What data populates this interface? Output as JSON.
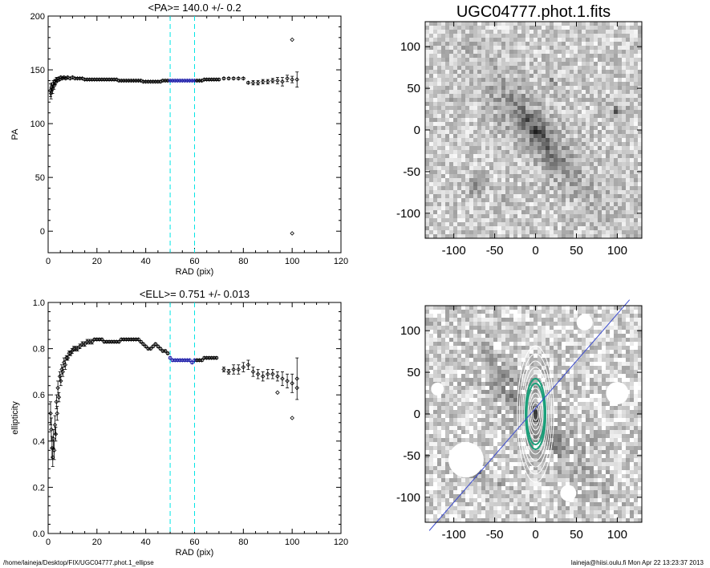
{
  "footer": {
    "path": "/home/laineja/Desktop/FIX/UGC04777.phot.1_ellipse",
    "stamp": "laineja@hiisi.oulu.fi  Mon Apr 22 13:23:37 2013"
  },
  "colors": {
    "axis": "#000000",
    "marker": "#000000",
    "fit_marker": "#1a1aa8",
    "cutline": "#00e5e5",
    "pa_line": "#3b4bd0",
    "contour": "#ffffff",
    "contour_accent": "#1aa07a"
  },
  "chart_data": [
    {
      "id": "pa",
      "type": "scatter",
      "title": "<PA>= 140.0 +/-   0.2",
      "xlabel": "RAD (pix)",
      "ylabel": "PA",
      "xlim": [
        0,
        120
      ],
      "ylim": [
        -20,
        200
      ],
      "xticks": [
        0,
        20,
        40,
        60,
        80,
        100,
        120
      ],
      "yticks": [
        0,
        50,
        100,
        150,
        200
      ],
      "cut_lines": [
        50,
        60
      ],
      "series": [
        {
          "x": [
            1.0,
            1.2,
            1.5,
            1.8,
            2.1,
            2.4,
            2.7,
            3.0,
            3.4,
            3.8,
            4.2,
            4.7,
            5.2,
            5.8,
            6.5,
            7.2,
            8.0,
            9.0,
            10,
            11,
            12,
            13,
            14,
            15,
            16,
            17,
            18,
            19,
            20,
            21,
            22,
            23,
            24,
            25,
            26,
            27,
            28,
            29,
            30,
            31,
            32,
            33,
            34,
            35,
            36,
            37,
            38,
            39,
            40,
            41,
            42,
            43,
            44,
            45,
            46,
            47,
            48,
            49,
            50,
            51,
            52,
            53,
            54,
            55,
            56,
            57,
            58,
            59,
            60,
            61,
            62,
            63,
            64,
            65,
            66,
            67,
            68,
            69,
            70,
            72,
            74,
            76,
            78,
            80,
            82,
            84,
            86,
            88,
            90,
            92,
            94,
            96,
            98,
            100,
            102
          ],
          "y": [
            131,
            128,
            134,
            132,
            137,
            135,
            139,
            138,
            141,
            140,
            142,
            141,
            143,
            142,
            143,
            142,
            143,
            142,
            143,
            142,
            142,
            142,
            142,
            141,
            141,
            141,
            141,
            141,
            141,
            141,
            141,
            141,
            141,
            141,
            141,
            141,
            141,
            140,
            140,
            140,
            140,
            140,
            140,
            140,
            140,
            140,
            140,
            139,
            139,
            139,
            139,
            139,
            139,
            139,
            139,
            140,
            140,
            140,
            140,
            140,
            140,
            140,
            140,
            140,
            140,
            140,
            140,
            140,
            140,
            140,
            140,
            140,
            141,
            141,
            141,
            141,
            141,
            141,
            141,
            142,
            142,
            142,
            142,
            142,
            138,
            138,
            138,
            139,
            139,
            140,
            140,
            139,
            142,
            141,
            141
          ],
          "err": [
            6,
            5,
            4,
            4,
            3,
            3,
            2,
            2,
            2,
            1,
            1,
            1,
            1,
            1,
            1,
            1,
            1,
            1,
            1,
            1,
            1,
            1,
            1,
            1,
            1,
            1,
            1,
            1,
            1,
            1,
            1,
            1,
            1,
            1,
            1,
            1,
            1,
            1,
            1,
            1,
            1,
            1,
            1,
            1,
            1,
            1,
            1,
            1,
            1,
            1,
            1,
            1,
            1,
            1,
            1,
            1,
            1,
            1,
            1,
            1,
            1,
            1,
            1,
            1,
            1,
            1,
            1,
            1,
            1,
            1,
            1,
            1,
            1,
            1,
            1,
            1,
            1,
            1,
            1,
            1,
            1,
            1,
            1,
            1,
            1,
            2,
            2,
            2,
            2,
            2,
            3,
            4,
            3,
            3,
            7
          ]
        }
      ],
      "outliers": {
        "x": [
          100,
          100
        ],
        "y": [
          178,
          -2
        ]
      }
    },
    {
      "id": "ell",
      "type": "scatter",
      "title": "<ELL>= 0.751 +/-  0.013",
      "xlabel": "RAD (pix)",
      "ylabel": "ellipticity",
      "xlim": [
        0,
        120
      ],
      "ylim": [
        0.0,
        1.0
      ],
      "xticks": [
        0,
        20,
        40,
        60,
        80,
        100,
        120
      ],
      "yticks": [
        0.0,
        0.2,
        0.4,
        0.6,
        0.8,
        1.0
      ],
      "cut_lines": [
        50,
        60
      ],
      "series": [
        {
          "x": [
            1.0,
            1.3,
            1.6,
            1.9,
            2.2,
            2.5,
            2.8,
            3.1,
            3.4,
            3.7,
            4.0,
            4.4,
            4.8,
            5.2,
            5.6,
            6.0,
            6.5,
            7.0,
            7.5,
            8.0,
            8.6,
            9.2,
            9.8,
            10.5,
            11.2,
            12,
            13,
            14,
            15,
            16,
            17,
            18,
            19,
            20,
            21,
            22,
            23,
            24,
            25,
            26,
            27,
            28,
            29,
            30,
            31,
            32,
            33,
            34,
            35,
            36,
            37,
            38,
            39,
            40,
            41,
            42,
            43,
            44,
            45,
            46,
            47,
            48,
            49,
            50,
            51,
            52,
            53,
            54,
            55,
            56,
            57,
            58,
            59,
            60,
            61,
            62,
            63,
            64,
            65,
            66,
            67,
            68,
            69
          ],
          "y": [
            0.52,
            0.45,
            0.37,
            0.33,
            0.41,
            0.36,
            0.47,
            0.43,
            0.57,
            0.52,
            0.63,
            0.59,
            0.68,
            0.66,
            0.71,
            0.7,
            0.74,
            0.73,
            0.76,
            0.76,
            0.78,
            0.78,
            0.79,
            0.8,
            0.8,
            0.8,
            0.81,
            0.82,
            0.82,
            0.83,
            0.83,
            0.83,
            0.84,
            0.84,
            0.84,
            0.84,
            0.83,
            0.83,
            0.83,
            0.83,
            0.83,
            0.83,
            0.83,
            0.84,
            0.84,
            0.84,
            0.84,
            0.84,
            0.84,
            0.84,
            0.84,
            0.83,
            0.82,
            0.81,
            0.8,
            0.8,
            0.81,
            0.82,
            0.81,
            0.8,
            0.79,
            0.79,
            0.78,
            0.76,
            0.75,
            0.75,
            0.75,
            0.75,
            0.75,
            0.75,
            0.75,
            0.75,
            0.74,
            0.75,
            0.75,
            0.75,
            0.75,
            0.76,
            0.76,
            0.76,
            0.76,
            0.76,
            0.76
          ],
          "err": [
            0.05,
            0.05,
            0.05,
            0.04,
            0.04,
            0.04,
            0.04,
            0.03,
            0.03,
            0.03,
            0.03,
            0.02,
            0.02,
            0.02,
            0.02,
            0.02,
            0.02,
            0.02,
            0.01,
            0.01,
            0.01,
            0.01,
            0.01,
            0.01,
            0.01,
            0.01,
            0.01,
            0.01,
            0.01,
            0.01,
            0.01,
            0.01,
            0.005,
            0.005,
            0.005,
            0.005,
            0.005,
            0.005,
            0.005,
            0.005,
            0.005,
            0.005,
            0.005,
            0.005,
            0.005,
            0.005,
            0.005,
            0.005,
            0.005,
            0.005,
            0.005,
            0.005,
            0.005,
            0.005,
            0.005,
            0.005,
            0.005,
            0.005,
            0.005,
            0.005,
            0.005,
            0.005,
            0.005,
            0.005,
            0.005,
            0.005,
            0.005,
            0.005,
            0.005,
            0.005,
            0.005,
            0.005,
            0.005,
            0.005,
            0.005,
            0.005,
            0.005,
            0.005,
            0.005,
            0.005,
            0.005,
            0.005,
            0.005
          ]
        },
        {
          "x": [
            72,
            74,
            76,
            78,
            80,
            82,
            84,
            86,
            88,
            90,
            92,
            94,
            96,
            98,
            100,
            102
          ],
          "y": [
            0.71,
            0.7,
            0.71,
            0.71,
            0.72,
            0.73,
            0.7,
            0.69,
            0.68,
            0.69,
            0.69,
            0.68,
            0.67,
            0.66,
            0.65,
            0.67
          ],
          "err": [
            0.01,
            0.01,
            0.02,
            0.02,
            0.02,
            0.02,
            0.02,
            0.02,
            0.02,
            0.02,
            0.02,
            0.02,
            0.03,
            0.03,
            0.04,
            0.09
          ]
        }
      ],
      "outliers": {
        "x": [
          94,
          100,
          102
        ],
        "y": [
          0.61,
          0.5,
          0.63
        ]
      }
    },
    {
      "id": "img",
      "type": "heatmap",
      "title": "UGC04777.phot.1.fits",
      "xlim": [
        -135,
        130
      ],
      "ylim": [
        -130,
        130
      ],
      "xticks": [
        -100,
        -50,
        0,
        50,
        100
      ],
      "yticks": [
        -100,
        -50,
        0,
        50,
        100
      ],
      "galaxy_pa": 140.0,
      "galaxy_ell": 0.751
    },
    {
      "id": "model",
      "type": "heatmap",
      "title": "",
      "xlim": [
        -135,
        130
      ],
      "ylim": [
        -130,
        130
      ],
      "xticks": [
        -100,
        -50,
        0,
        50,
        100
      ],
      "yticks": [
        -100,
        -50,
        0,
        50,
        100
      ],
      "galaxy_pa": 140.0,
      "galaxy_ell": 0.751
    }
  ]
}
